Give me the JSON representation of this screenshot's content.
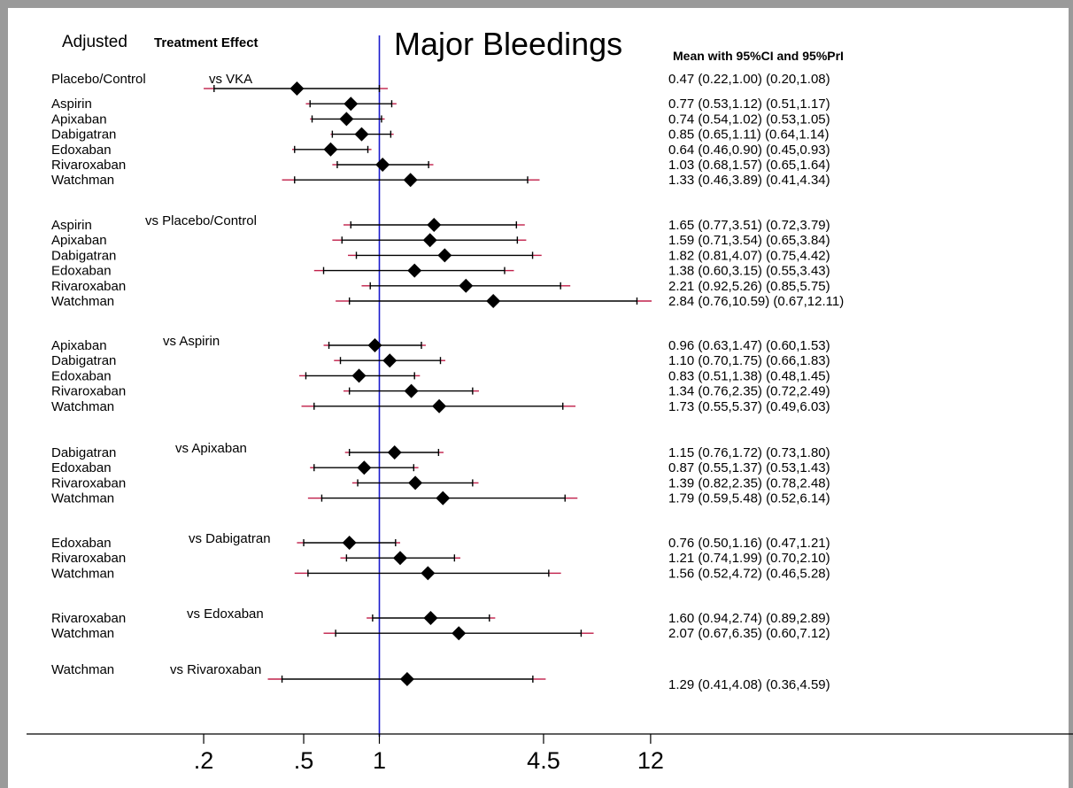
{
  "header": {
    "adjusted_label": "Adjusted",
    "treatment_effect_label": "Treatment Effect",
    "title": "Major Bleedings",
    "stats_header": "Mean with 95%CI and 95%PrI"
  },
  "colors": {
    "reference_line": "#1a1acc",
    "ci_line": "#000000",
    "pri_tail": "#c0204a",
    "marker": "#000000"
  },
  "chart_data": {
    "type": "forest",
    "title": "Major Bleedings",
    "x_scale": "log",
    "x_ticks": [
      0.2,
      0.5,
      1,
      4.5,
      12
    ],
    "x_tick_labels": [
      ".2",
      ".5",
      "1",
      "4.5",
      "12"
    ],
    "reference_value": 1,
    "groups": [
      {
        "comparator": "vs VKA",
        "rows": [
          {
            "treatment": "Placebo/Control",
            "label": "0.47 (0.22,1.00)  (0.20,1.08)",
            "mean": 0.47,
            "ci": [
              0.22,
              1.0
            ],
            "pri": [
              0.2,
              1.08
            ]
          },
          {
            "treatment": "Aspirin",
            "label": "0.77 (0.53,1.12)  (0.51,1.17)",
            "mean": 0.77,
            "ci": [
              0.53,
              1.12
            ],
            "pri": [
              0.51,
              1.17
            ]
          },
          {
            "treatment": "Apixaban",
            "label": "0.74 (0.54,1.02)  (0.53,1.05)",
            "mean": 0.74,
            "ci": [
              0.54,
              1.02
            ],
            "pri": [
              0.53,
              1.05
            ]
          },
          {
            "treatment": "Dabigatran",
            "label": "0.85 (0.65,1.11)  (0.64,1.14)",
            "mean": 0.85,
            "ci": [
              0.65,
              1.11
            ],
            "pri": [
              0.64,
              1.14
            ]
          },
          {
            "treatment": "Edoxaban",
            "label": "0.64 (0.46,0.90)  (0.45,0.93)",
            "mean": 0.64,
            "ci": [
              0.46,
              0.9
            ],
            "pri": [
              0.45,
              0.93
            ]
          },
          {
            "treatment": "Rivaroxaban",
            "label": "1.03 (0.68,1.57)  (0.65,1.64)",
            "mean": 1.03,
            "ci": [
              0.68,
              1.57
            ],
            "pri": [
              0.65,
              1.64
            ]
          },
          {
            "treatment": "Watchman",
            "label": "1.33 (0.46,3.89)  (0.41,4.34)",
            "mean": 1.33,
            "ci": [
              0.46,
              3.89
            ],
            "pri": [
              0.41,
              4.34
            ]
          }
        ]
      },
      {
        "comparator": "vs Placebo/Control",
        "rows": [
          {
            "treatment": "Aspirin",
            "label": "1.65 (0.77,3.51)  (0.72,3.79)",
            "mean": 1.65,
            "ci": [
              0.77,
              3.51
            ],
            "pri": [
              0.72,
              3.79
            ]
          },
          {
            "treatment": "Apixaban",
            "label": "1.59 (0.71,3.54)  (0.65,3.84)",
            "mean": 1.59,
            "ci": [
              0.71,
              3.54
            ],
            "pri": [
              0.65,
              3.84
            ]
          },
          {
            "treatment": "Dabigatran",
            "label": "1.82 (0.81,4.07)  (0.75,4.42)",
            "mean": 1.82,
            "ci": [
              0.81,
              4.07
            ],
            "pri": [
              0.75,
              4.42
            ]
          },
          {
            "treatment": "Edoxaban",
            "label": "1.38 (0.60,3.15)  (0.55,3.43)",
            "mean": 1.38,
            "ci": [
              0.6,
              3.15
            ],
            "pri": [
              0.55,
              3.43
            ]
          },
          {
            "treatment": "Rivaroxaban",
            "label": "2.21 (0.92,5.26)  (0.85,5.75)",
            "mean": 2.21,
            "ci": [
              0.92,
              5.26
            ],
            "pri": [
              0.85,
              5.75
            ]
          },
          {
            "treatment": "Watchman",
            "label": "2.84 (0.76,10.59)  (0.67,12.11)",
            "mean": 2.84,
            "ci": [
              0.76,
              10.59
            ],
            "pri": [
              0.67,
              12.11
            ]
          }
        ]
      },
      {
        "comparator": "vs Aspirin",
        "rows": [
          {
            "treatment": "Apixaban",
            "label": "0.96 (0.63,1.47)  (0.60,1.53)",
            "mean": 0.96,
            "ci": [
              0.63,
              1.47
            ],
            "pri": [
              0.6,
              1.53
            ]
          },
          {
            "treatment": "Dabigatran",
            "label": "1.10 (0.70,1.75)  (0.66,1.83)",
            "mean": 1.1,
            "ci": [
              0.7,
              1.75
            ],
            "pri": [
              0.66,
              1.83
            ]
          },
          {
            "treatment": "Edoxaban",
            "label": "0.83 (0.51,1.38)  (0.48,1.45)",
            "mean": 0.83,
            "ci": [
              0.51,
              1.38
            ],
            "pri": [
              0.48,
              1.45
            ]
          },
          {
            "treatment": "Rivaroxaban",
            "label": "1.34 (0.76,2.35)  (0.72,2.49)",
            "mean": 1.34,
            "ci": [
              0.76,
              2.35
            ],
            "pri": [
              0.72,
              2.49
            ]
          },
          {
            "treatment": "Watchman",
            "label": "1.73 (0.55,5.37)  (0.49,6.03)",
            "mean": 1.73,
            "ci": [
              0.55,
              5.37
            ],
            "pri": [
              0.49,
              6.03
            ]
          }
        ]
      },
      {
        "comparator": "vs Apixaban",
        "rows": [
          {
            "treatment": "Dabigatran",
            "label": "1.15 (0.76,1.72)  (0.73,1.80)",
            "mean": 1.15,
            "ci": [
              0.76,
              1.72
            ],
            "pri": [
              0.73,
              1.8
            ]
          },
          {
            "treatment": "Edoxaban",
            "label": "0.87 (0.55,1.37)  (0.53,1.43)",
            "mean": 0.87,
            "ci": [
              0.55,
              1.37
            ],
            "pri": [
              0.53,
              1.43
            ]
          },
          {
            "treatment": "Rivaroxaban",
            "label": "1.39 (0.82,2.35)  (0.78,2.48)",
            "mean": 1.39,
            "ci": [
              0.82,
              2.35
            ],
            "pri": [
              0.78,
              2.48
            ]
          },
          {
            "treatment": "Watchman",
            "label": "1.79 (0.59,5.48)  (0.52,6.14)",
            "mean": 1.79,
            "ci": [
              0.59,
              5.48
            ],
            "pri": [
              0.52,
              6.14
            ]
          }
        ]
      },
      {
        "comparator": "vs Dabigatran",
        "rows": [
          {
            "treatment": "Edoxaban",
            "label": "0.76 (0.50,1.16)  (0.47,1.21)",
            "mean": 0.76,
            "ci": [
              0.5,
              1.16
            ],
            "pri": [
              0.47,
              1.21
            ]
          },
          {
            "treatment": "Rivaroxaban",
            "label": "1.21 (0.74,1.99)  (0.70,2.10)",
            "mean": 1.21,
            "ci": [
              0.74,
              1.99
            ],
            "pri": [
              0.7,
              2.1
            ]
          },
          {
            "treatment": "Watchman",
            "label": "1.56 (0.52,4.72)  (0.46,5.28)",
            "mean": 1.56,
            "ci": [
              0.52,
              4.72
            ],
            "pri": [
              0.46,
              5.28
            ]
          }
        ]
      },
      {
        "comparator": "vs Edoxaban",
        "rows": [
          {
            "treatment": "Rivaroxaban",
            "label": "1.60 (0.94,2.74)  (0.89,2.89)",
            "mean": 1.6,
            "ci": [
              0.94,
              2.74
            ],
            "pri": [
              0.89,
              2.89
            ]
          },
          {
            "treatment": "Watchman",
            "label": "2.07 (0.67,6.35)  (0.60,7.12)",
            "mean": 2.07,
            "ci": [
              0.67,
              6.35
            ],
            "pri": [
              0.6,
              7.12
            ]
          }
        ]
      },
      {
        "comparator": "vs Rivaroxaban",
        "rows": [
          {
            "treatment": "Watchman",
            "label": "1.29 (0.41,4.08)  (0.36,4.59)",
            "mean": 1.29,
            "ci": [
              0.41,
              4.08
            ],
            "pri": [
              0.36,
              4.59
            ]
          }
        ]
      }
    ]
  }
}
